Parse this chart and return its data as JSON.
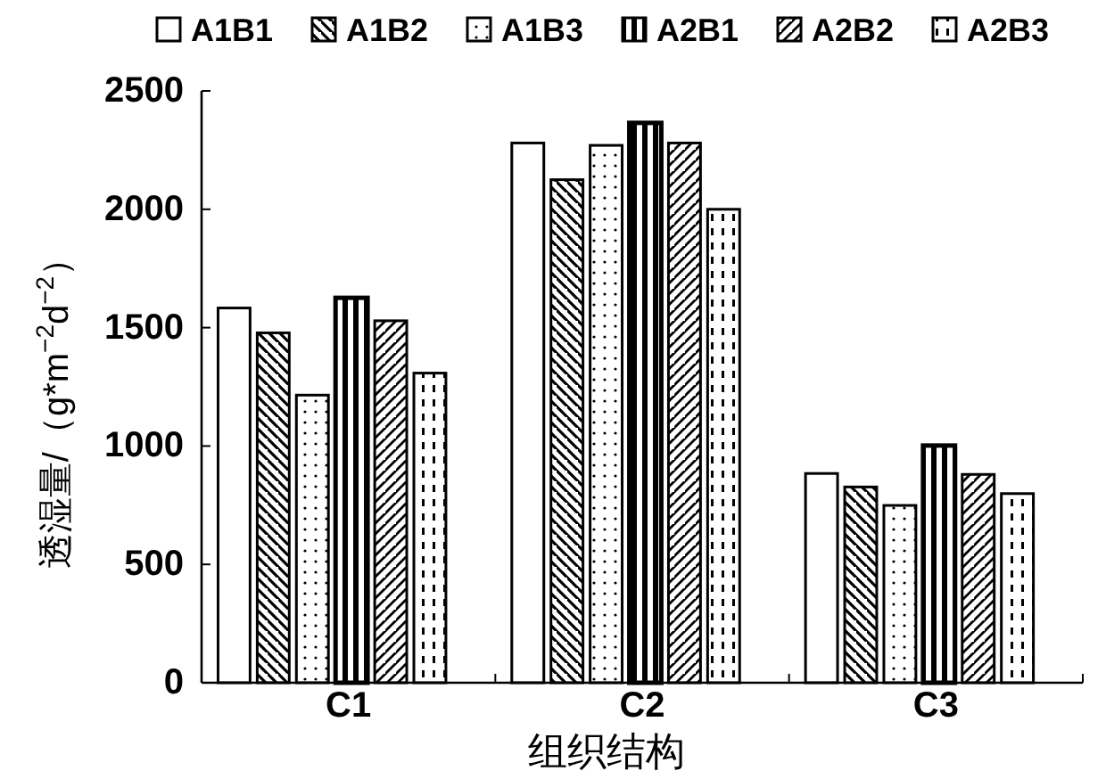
{
  "chart_data": {
    "type": "bar",
    "xlabel": "组织结构",
    "ylabel": "透湿量/（g*m$^{−2}$d$^{−2}$）",
    "categories": [
      "C1",
      "C2",
      "C3"
    ],
    "series": [
      {
        "name": "A1B1",
        "color": "#000000",
        "values": [
          1583,
          2280,
          884
        ]
      },
      {
        "name": "A1B2",
        "color": "#000000",
        "values": [
          1478,
          2125,
          827
        ]
      },
      {
        "name": "A1B3",
        "color": "#000000",
        "values": [
          1215,
          2270,
          749
        ]
      },
      {
        "name": "A2B1",
        "color": "#000000",
        "values": [
          1626,
          2365,
          1002
        ]
      },
      {
        "name": "A2B2",
        "color": "#000000",
        "values": [
          1529,
          2280,
          880
        ]
      },
      {
        "name": "A2B3",
        "color": "#000000",
        "values": [
          1308,
          2000,
          799
        ]
      }
    ],
    "ylim": [
      0,
      2500
    ],
    "yticks": [
      0,
      500,
      1000,
      1500,
      2000,
      2500
    ],
    "grid": false,
    "legend": "top"
  }
}
